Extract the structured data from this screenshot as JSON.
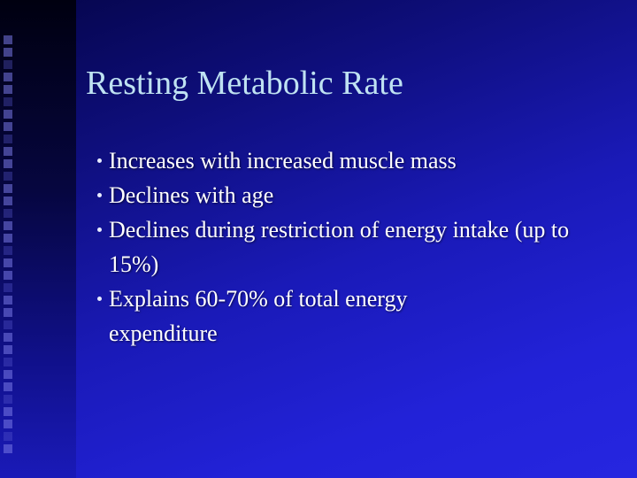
{
  "slide": {
    "title": "Resting Metabolic Rate",
    "bullets": [
      {
        "text": "Increases with increased muscle mass"
      },
      {
        "text": "Declines with age"
      },
      {
        "text": "Declines during restriction of energy intake (up to 15%)"
      },
      {
        "text": "Explains 60-70% of total energy expenditure"
      }
    ]
  },
  "theme": {
    "title_color": "#bfe2f2",
    "text_color": "#ffffff",
    "background_dark": "#05054a",
    "background_light": "#2626e0"
  }
}
